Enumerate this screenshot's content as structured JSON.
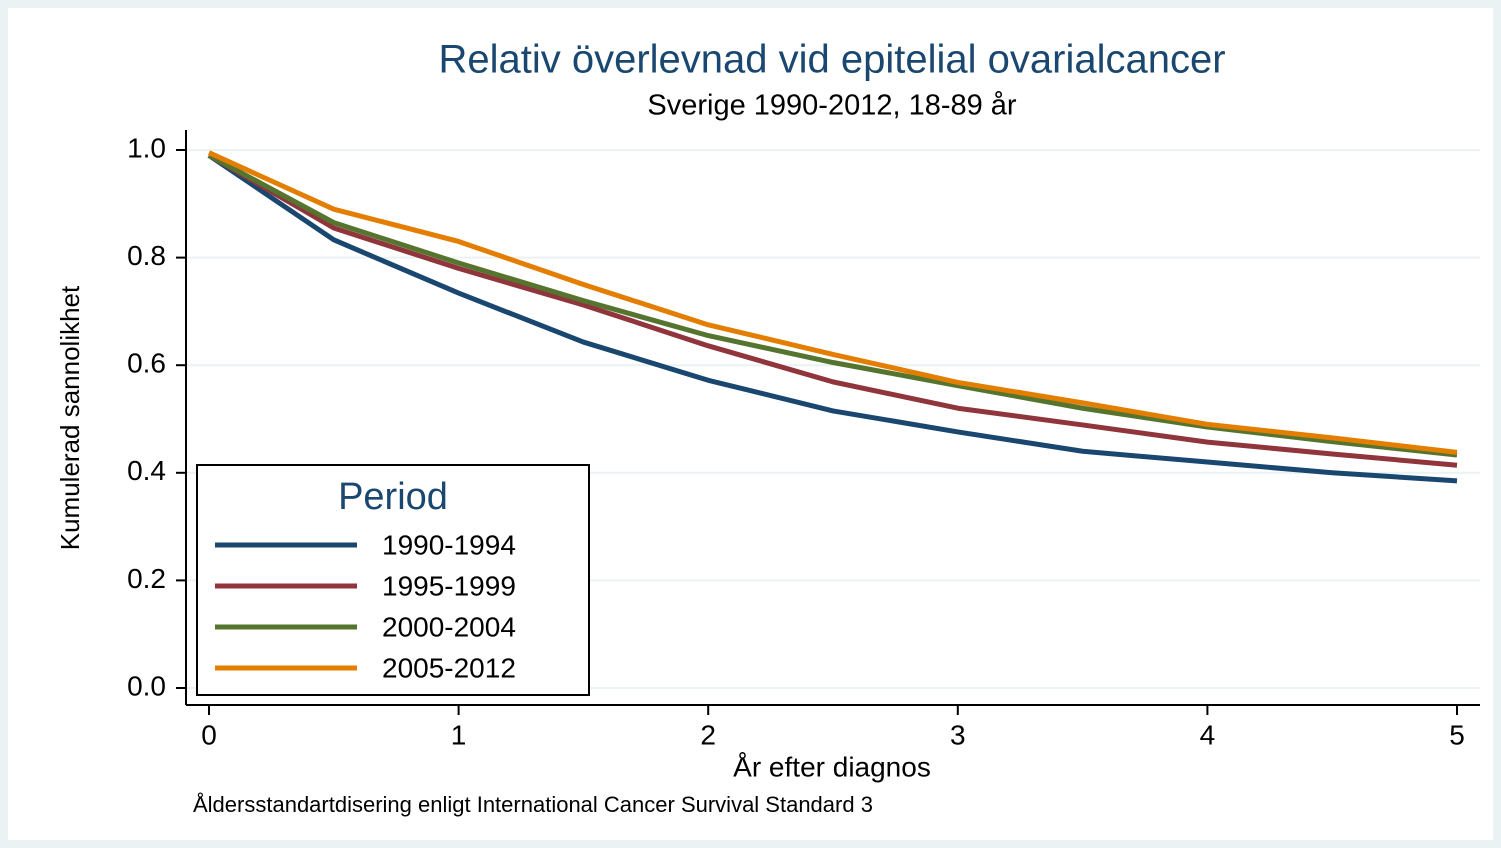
{
  "chart_data": {
    "type": "line",
    "title": "Relativ överlevnad vid epitelial ovarialcancer",
    "subtitle": "Sverige 1990-2012, 18-89 år",
    "xlabel": "År efter diagnos",
    "ylabel": "Kumulerad sannolikhet",
    "note": "Åldersstandartdisering enligt International Cancer Survival Standard 3",
    "x": [
      0,
      0.5,
      1,
      1.5,
      2,
      2.5,
      3,
      3.5,
      4,
      4.5,
      5
    ],
    "series": [
      {
        "name": "1990-1994",
        "color": "#1a476f",
        "values": [
          0.99,
          0.833,
          0.734,
          0.643,
          0.572,
          0.515,
          0.476,
          0.44,
          0.42,
          0.4,
          0.385
        ]
      },
      {
        "name": "1995-1999",
        "color": "#90353b",
        "values": [
          0.99,
          0.855,
          0.78,
          0.712,
          0.636,
          0.569,
          0.52,
          0.489,
          0.457,
          0.435,
          0.414
        ]
      },
      {
        "name": "2000-2004",
        "color": "#55752f",
        "values": [
          0.99,
          0.865,
          0.79,
          0.72,
          0.655,
          0.605,
          0.562,
          0.52,
          0.485,
          0.458,
          0.433
        ]
      },
      {
        "name": "2005-2012",
        "color": "#e37e00",
        "values": [
          0.995,
          0.89,
          0.83,
          0.75,
          0.675,
          0.62,
          0.568,
          0.53,
          0.49,
          0.465,
          0.438
        ]
      }
    ],
    "legend_title": "Period",
    "legend": "lower left",
    "xlim": [
      0,
      5
    ],
    "xticks": [
      0,
      1,
      2,
      3,
      4,
      5
    ],
    "ylim": [
      0,
      1
    ],
    "yticks": [
      {
        "value": 0,
        "label": "0.0"
      },
      0.2,
      0.4,
      0.6,
      0.8,
      {
        "value": 1,
        "label": "1.0"
      }
    ],
    "grid": true
  }
}
